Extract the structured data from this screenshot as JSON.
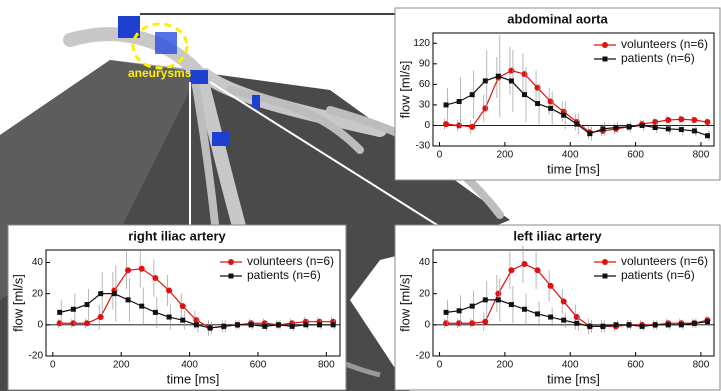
{
  "annotation": "aneurysms",
  "chart_data": [
    {
      "type": "line",
      "title": "abdominal aorta",
      "x_label": "time [ms]",
      "y_label": "flow [ml/s]",
      "x": [
        20,
        60,
        100,
        140,
        180,
        220,
        260,
        300,
        340,
        380,
        420,
        460,
        500,
        540,
        580,
        620,
        660,
        700,
        740,
        780,
        820
      ],
      "xlim": [
        -20,
        840
      ],
      "xticks": [
        0,
        200,
        400,
        600,
        800
      ],
      "ylim": [
        -30,
        135
      ],
      "yticks": [
        -30,
        0,
        30,
        60,
        90,
        120
      ],
      "legend": "upper right",
      "series": [
        {
          "name": "volunteers (n=6)",
          "color": "#e01010",
          "marker": "circle",
          "values": [
            2,
            0,
            -2,
            25,
            70,
            80,
            75,
            55,
            35,
            20,
            5,
            -10,
            -8,
            -5,
            -2,
            2,
            5,
            8,
            9,
            8,
            5
          ],
          "errors": [
            8,
            8,
            10,
            20,
            30,
            35,
            30,
            25,
            20,
            15,
            12,
            10,
            8,
            8,
            6,
            6,
            6,
            6,
            6,
            6,
            6
          ]
        },
        {
          "name": "patients (n=6)",
          "color": "#111111",
          "marker": "square",
          "values": [
            30,
            35,
            45,
            65,
            72,
            65,
            45,
            32,
            25,
            15,
            2,
            -12,
            -5,
            -3,
            -2,
            0,
            -3,
            -5,
            -6,
            -8,
            -15
          ],
          "errors": [
            25,
            35,
            35,
            45,
            60,
            45,
            40,
            30,
            25,
            20,
            15,
            10,
            10,
            8,
            8,
            8,
            8,
            8,
            8,
            8,
            8
          ]
        }
      ]
    },
    {
      "type": "line",
      "title": "right iliac artery",
      "x_label": "time [ms]",
      "y_label": "flow [ml/s]",
      "x": [
        20,
        60,
        100,
        140,
        180,
        220,
        260,
        300,
        340,
        380,
        420,
        460,
        500,
        540,
        580,
        620,
        660,
        700,
        740,
        780,
        820
      ],
      "xlim": [
        -20,
        840
      ],
      "xticks": [
        0,
        200,
        400,
        600,
        800
      ],
      "ylim": [
        -20,
        48
      ],
      "yticks": [
        -20,
        0,
        20,
        40
      ],
      "legend": "upper right",
      "series": [
        {
          "name": "volunteers (n=6)",
          "color": "#e01010",
          "marker": "circle",
          "values": [
            1,
            1,
            1,
            5,
            22,
            35,
            36,
            30,
            22,
            12,
            3,
            -2,
            -1,
            0,
            1,
            1,
            0,
            1,
            2,
            2,
            2
          ],
          "errors": [
            3,
            3,
            3,
            8,
            12,
            12,
            12,
            12,
            10,
            8,
            6,
            5,
            4,
            3,
            3,
            3,
            3,
            3,
            3,
            3,
            3
          ]
        },
        {
          "name": "patients (n=6)",
          "color": "#111111",
          "marker": "square",
          "values": [
            8,
            10,
            13,
            20,
            20,
            16,
            12,
            8,
            5,
            3,
            0,
            -2,
            -1,
            0,
            0,
            -1,
            0,
            -1,
            0,
            0,
            0
          ],
          "errors": [
            8,
            10,
            10,
            14,
            18,
            14,
            12,
            10,
            8,
            6,
            5,
            4,
            4,
            3,
            3,
            3,
            3,
            3,
            3,
            3,
            3
          ]
        }
      ]
    },
    {
      "type": "line",
      "title": "left iliac artery",
      "x_label": "time [ms]",
      "y_label": "flow [ml/s]",
      "x": [
        20,
        60,
        100,
        140,
        180,
        220,
        260,
        300,
        340,
        380,
        420,
        460,
        500,
        540,
        580,
        620,
        660,
        700,
        740,
        780,
        820
      ],
      "xlim": [
        -20,
        840
      ],
      "xticks": [
        0,
        200,
        400,
        600,
        800
      ],
      "ylim": [
        -20,
        48
      ],
      "yticks": [
        -20,
        0,
        20,
        40
      ],
      "legend": "upper right",
      "series": [
        {
          "name": "volunteers (n=6)",
          "color": "#e01010",
          "marker": "circle",
          "values": [
            1,
            1,
            1,
            2,
            20,
            35,
            39,
            35,
            25,
            15,
            5,
            -1,
            -1,
            -1,
            0,
            0,
            0,
            1,
            1,
            1,
            3
          ],
          "errors": [
            3,
            3,
            3,
            6,
            12,
            12,
            12,
            12,
            10,
            8,
            8,
            5,
            4,
            3,
            3,
            3,
            3,
            3,
            3,
            3,
            3
          ]
        },
        {
          "name": "patients (n=6)",
          "color": "#111111",
          "marker": "square",
          "values": [
            8,
            9,
            12,
            16,
            16,
            13,
            10,
            7,
            5,
            3,
            1,
            -1,
            -1,
            0,
            0,
            -1,
            0,
            0,
            0,
            1,
            2
          ],
          "errors": [
            8,
            10,
            10,
            12,
            14,
            12,
            10,
            8,
            6,
            5,
            5,
            4,
            4,
            3,
            3,
            3,
            3,
            3,
            3,
            3,
            3
          ]
        }
      ]
    }
  ]
}
